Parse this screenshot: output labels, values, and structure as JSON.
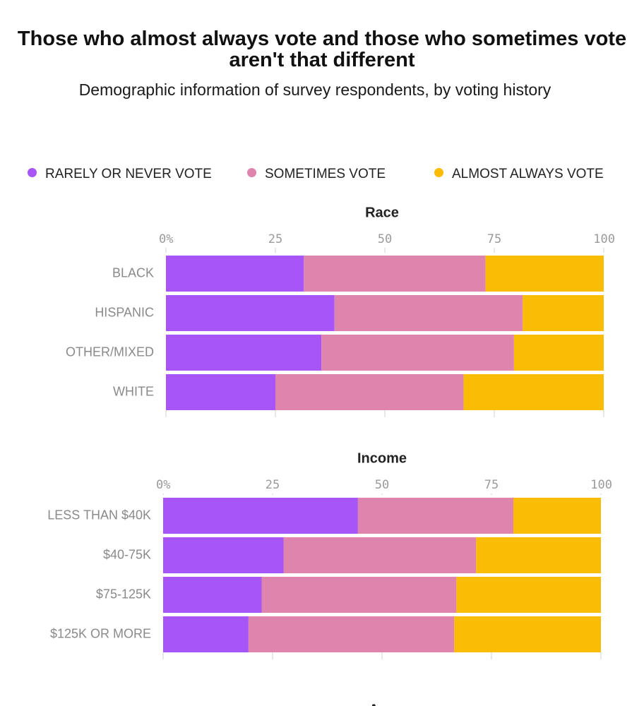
{
  "title": "Those who almost always vote and those who sometimes vote aren't that different",
  "subtitle": "Demographic information of survey respondents, by voting history",
  "colors": {
    "rarely": "#a855f7",
    "sometimes": "#df85ad",
    "always": "#fbbc05"
  },
  "legend": [
    "RARELY OR NEVER VOTE",
    "SOMETIMES VOTE",
    "ALMOST ALWAYS VOTE"
  ],
  "chart_data": [
    {
      "type": "bar",
      "stacked": true,
      "orientation": "horizontal",
      "title": "Race",
      "ticks": [
        "0%",
        "25",
        "50",
        "75",
        "100"
      ],
      "xlim": [
        0,
        100
      ],
      "categories": [
        "BLACK",
        "HISPANIC",
        "OTHER/MIXED",
        "WHITE"
      ],
      "series": [
        {
          "name": "RARELY OR NEVER VOTE",
          "values": [
            31.5,
            38.5,
            35.5,
            25
          ]
        },
        {
          "name": "SOMETIMES VOTE",
          "values": [
            41.5,
            43,
            44,
            43
          ]
        },
        {
          "name": "ALMOST ALWAYS VOTE",
          "values": [
            27,
            18.5,
            20.5,
            32
          ]
        }
      ]
    },
    {
      "type": "bar",
      "stacked": true,
      "orientation": "horizontal",
      "title": "Income",
      "ticks": [
        "0%",
        "25",
        "50",
        "75",
        "100"
      ],
      "xlim": [
        0,
        100
      ],
      "categories": [
        "LESS THAN $40K",
        "$40-75K",
        "$75-125K",
        "$125K OR MORE"
      ],
      "series": [
        {
          "name": "RARELY OR NEVER VOTE",
          "values": [
            44.5,
            27.5,
            22.5,
            19.5
          ]
        },
        {
          "name": "SOMETIMES VOTE",
          "values": [
            35.5,
            44,
            44.5,
            47
          ]
        },
        {
          "name": "ALMOST ALWAYS VOTE",
          "values": [
            20,
            28.5,
            33,
            33.5
          ]
        }
      ]
    },
    {
      "type": "bar",
      "title": "Age"
    }
  ]
}
